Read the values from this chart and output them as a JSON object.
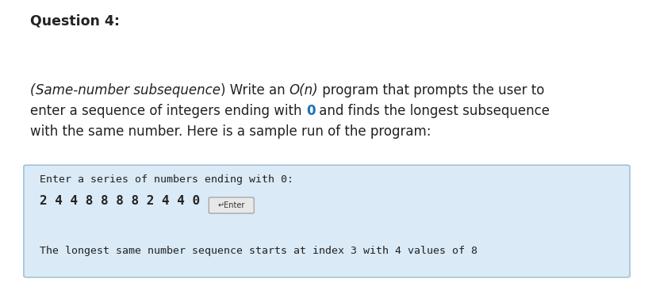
{
  "title": "Question 4:",
  "title_fontsize": 12.5,
  "title_fontweight": "bold",
  "body_fontsize": 12.0,
  "console_fontsize": 9.5,
  "console_line2_fontsize": 11.5,
  "box_bg_color": "#daeaf6",
  "box_border_color": "#9ab8cc",
  "enter_button_bg": "#e8e8e8",
  "enter_button_border": "#999999",
  "enter_button_text": "↵Enter",
  "bg_color": "#ffffff",
  "console_color": "#222222",
  "body_color": "#222222",
  "blue_color": "#1a72bb",
  "line1_segs": [
    {
      "text": "(",
      "style": "italic"
    },
    {
      "text": "Same-number subsequence",
      "style": "italic"
    },
    {
      "text": ") Write an ",
      "style": "normal"
    },
    {
      "text": "O(n)",
      "style": "italic"
    },
    {
      "text": " program that prompts the user to",
      "style": "normal"
    }
  ],
  "line2_segs": [
    {
      "text": "enter a sequence of integers ending with ",
      "style": "normal",
      "color": "#222222"
    },
    {
      "text": "0",
      "style": "bold",
      "color": "#1a72bb"
    },
    {
      "text": " and finds the longest subsequence",
      "style": "normal",
      "color": "#222222"
    }
  ],
  "line3_segs": [
    {
      "text": "with the same number. Here is a sample run of the program:",
      "style": "normal",
      "color": "#222222"
    }
  ],
  "console_line1": "Enter a series of numbers ending with 0:",
  "console_line2": "2 4 4 8 8 8 8 2 4 4 0 ",
  "console_line3": "The longest same number sequence starts at index 3 with 4 values of 8"
}
